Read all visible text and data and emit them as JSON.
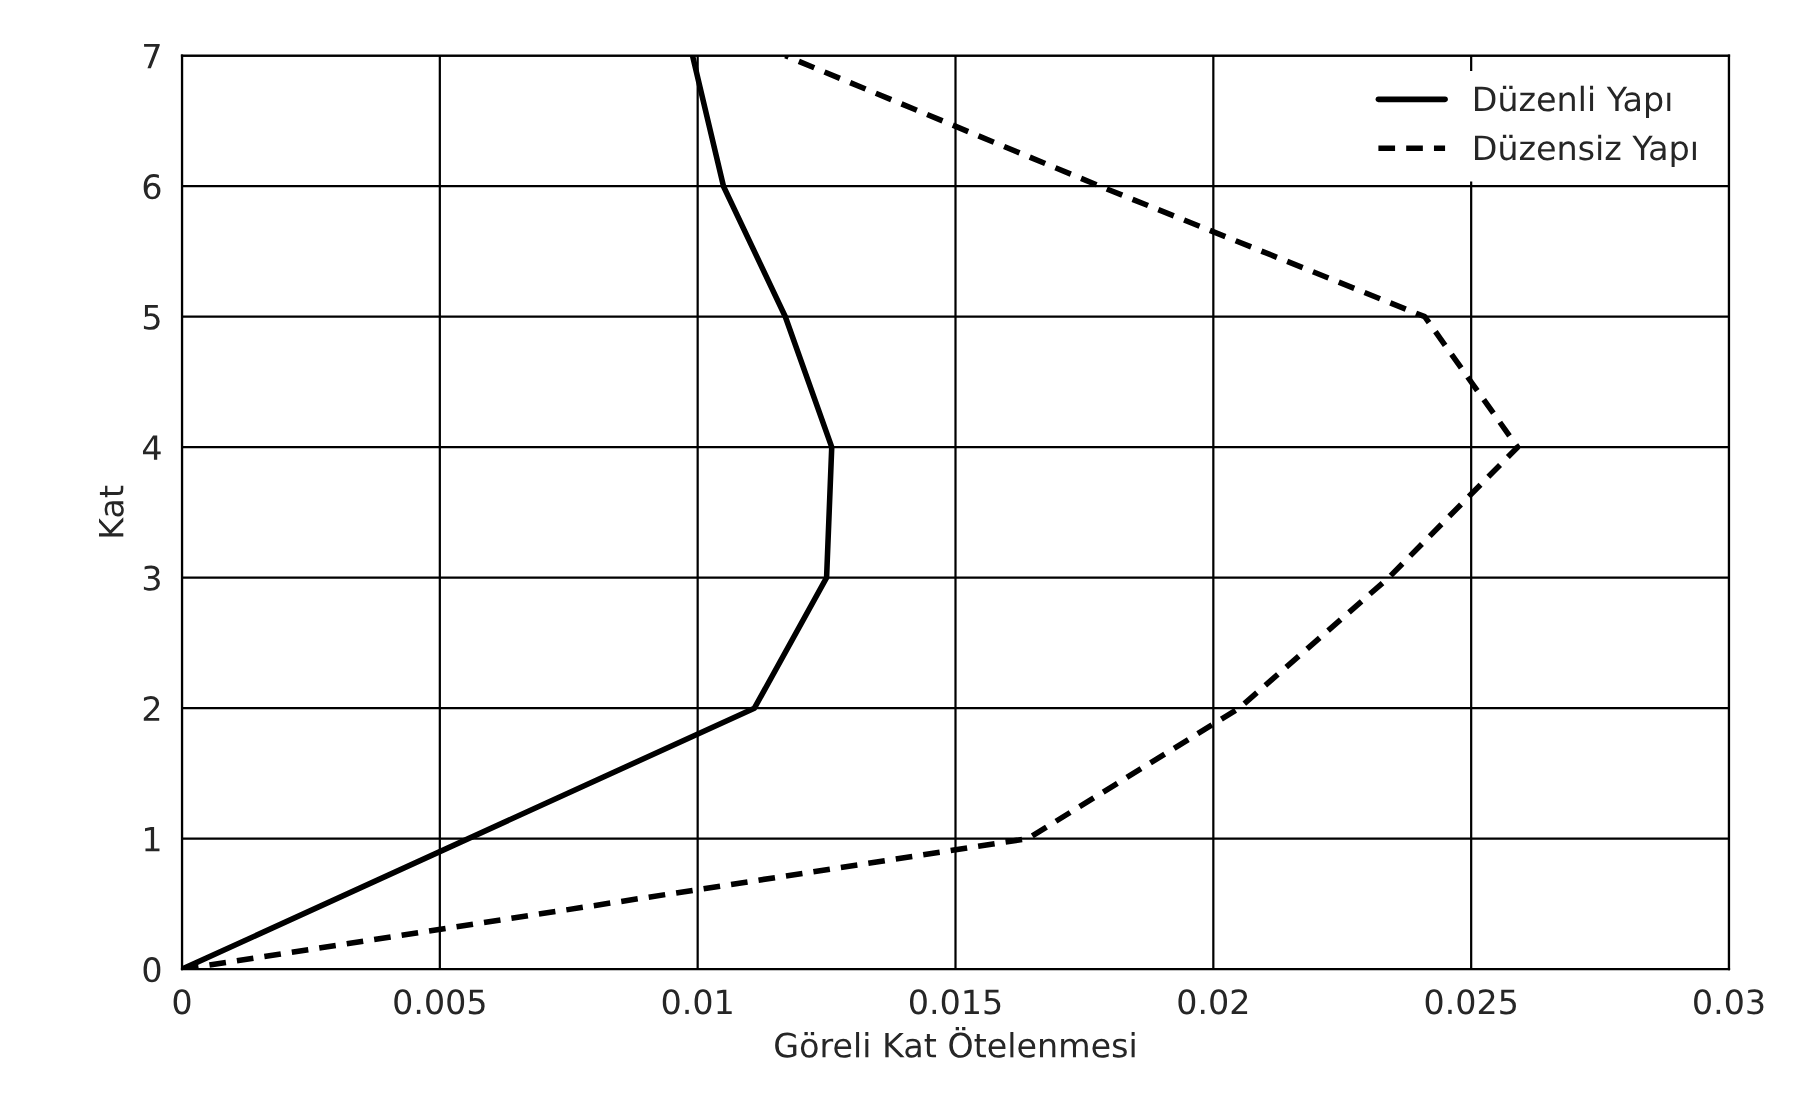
{
  "chart_data": {
    "type": "line",
    "xlabel": "Göreli Kat Ötelenmesi",
    "ylabel": "Kat",
    "xlim": [
      0,
      0.03
    ],
    "xticks": [
      0,
      0.005,
      0.01,
      0.015,
      0.02,
      0.025,
      0.03
    ],
    "ylim": [
      0,
      7
    ],
    "yticks": [
      0,
      1,
      2,
      3,
      4,
      5,
      6,
      7
    ],
    "grid": true,
    "legend": "top right",
    "marker": "none",
    "series": [
      {
        "name": "Düzenli Yapı",
        "color": "#000000",
        "line_style": "solid",
        "x": [
          0,
          0.0111,
          0.0125,
          0.0126,
          0.0117,
          0.0105,
          0.0099
        ],
        "values": [
          0,
          2,
          3,
          4,
          5,
          6,
          7
        ]
      },
      {
        "name": "Düzensiz Yapı",
        "color": "#000000",
        "line_style": "dashed",
        "x": [
          0,
          0.0164,
          0.0205,
          0.0234,
          0.0259,
          0.0241,
          0.0178,
          0.0117
        ],
        "values": [
          0,
          1,
          2,
          3,
          4,
          5,
          6,
          7
        ]
      }
    ]
  }
}
